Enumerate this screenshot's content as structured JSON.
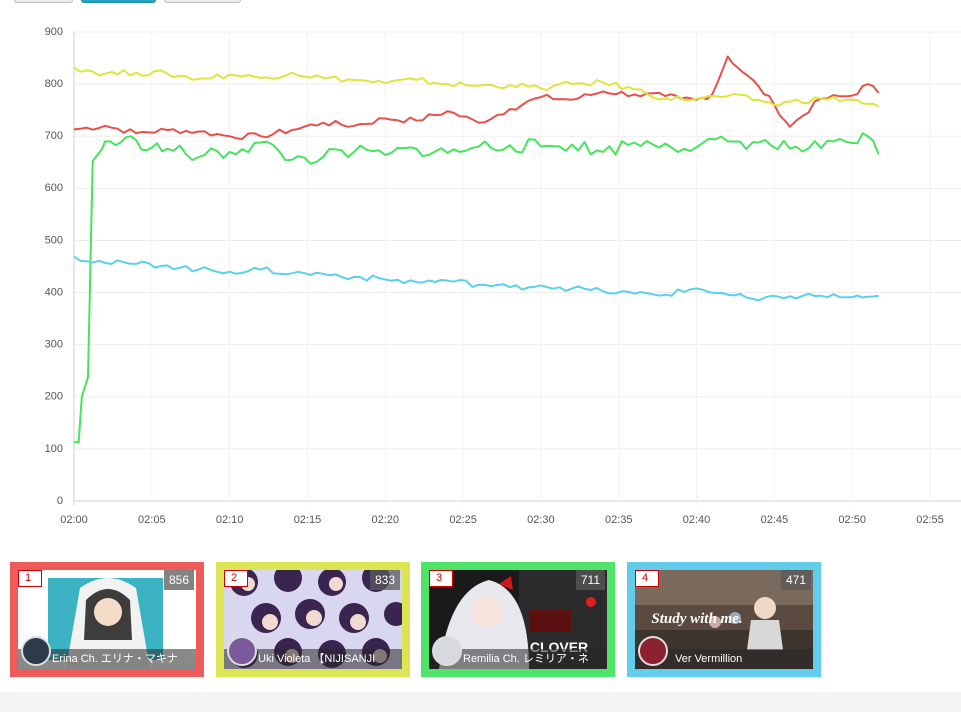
{
  "chart_data": {
    "type": "line",
    "y_ticks": [
      "900",
      "800",
      "700",
      "600",
      "500",
      "400",
      "300",
      "200",
      "100",
      "0"
    ],
    "x_ticks": [
      "02:00",
      "02:05",
      "02:10",
      "02:15",
      "02:20",
      "02:25",
      "02:30",
      "02:35",
      "02:40",
      "02:45",
      "02:50",
      "02:55"
    ],
    "ylim": [
      0,
      900
    ],
    "xlim_minutes": [
      0,
      55
    ],
    "grid": true,
    "series": [
      {
        "color": "#e8504a",
        "x": [
          0,
          2,
          4,
          6,
          8,
          10,
          12,
          14,
          16,
          18,
          20,
          22,
          24,
          26,
          28,
          30,
          32,
          34,
          36,
          38,
          39,
          40,
          41,
          42,
          43,
          44,
          45,
          46,
          48,
          50,
          51,
          51.7
        ],
        "y": [
          713,
          720,
          706,
          712,
          709,
          700,
          700,
          712,
          726,
          720,
          734,
          730,
          748,
          726,
          752,
          775,
          770,
          786,
          780,
          777,
          772,
          770,
          780,
          853,
          822,
          795,
          760,
          718,
          772,
          778,
          800,
          783
        ]
      },
      {
        "color": "#dce63c",
        "x": [
          0,
          2,
          4,
          6,
          8,
          10,
          12,
          14,
          16,
          18,
          20,
          22,
          24,
          26,
          28,
          30,
          32,
          34,
          36,
          38,
          40,
          42,
          44,
          45,
          46,
          48,
          50,
          51,
          51.7
        ],
        "y": [
          832,
          820,
          822,
          820,
          810,
          818,
          812,
          822,
          812,
          808,
          802,
          808,
          800,
          797,
          798,
          792,
          800,
          803,
          790,
          772,
          772,
          777,
          770,
          760,
          766,
          772,
          770,
          762,
          757
        ]
      },
      {
        "color": "#46e35e",
        "x": [
          0,
          0.3,
          0.5,
          0.9,
          1.2,
          1.4,
          1.6,
          1.8,
          2,
          3,
          4,
          5,
          6,
          8,
          10,
          12,
          14,
          16,
          18,
          20,
          22,
          24,
          26,
          28,
          30,
          32,
          34,
          36,
          38,
          40,
          42,
          44,
          46,
          48,
          50,
          51,
          51.7
        ],
        "y": [
          113,
          113,
          200,
          238,
          652,
          660,
          668,
          675,
          690,
          688,
          692,
          678,
          676,
          660,
          670,
          688,
          655,
          660,
          670,
          664,
          676,
          668,
          680,
          683,
          680,
          684,
          670,
          688,
          686,
          679,
          690,
          688,
          676,
          677,
          687,
          700,
          665
        ]
      },
      {
        "color": "#5bd0ea",
        "x": [
          0,
          2,
          4,
          6,
          8,
          10,
          12,
          14,
          16,
          18,
          20,
          22,
          24,
          26,
          28,
          30,
          32,
          34,
          36,
          38,
          40,
          42,
          44,
          46,
          48,
          50,
          51,
          51.7
        ],
        "y": [
          469,
          457,
          455,
          452,
          444,
          440,
          444,
          437,
          436,
          430,
          425,
          420,
          423,
          415,
          410,
          414,
          408,
          402,
          398,
          396,
          408,
          396,
          385,
          393,
          394,
          391,
          392,
          394
        ]
      }
    ]
  },
  "cards": [
    {
      "rank": "1",
      "count": "856",
      "name": "Erina Ch. エリナ・マキナ",
      "color": "#ee5b5b"
    },
    {
      "rank": "2",
      "count": "833",
      "name": "Uki Violeta 【NIJISANJI",
      "color": "#dce654"
    },
    {
      "rank": "3",
      "count": "711",
      "name": "Remilia Ch. レミリア・ネ",
      "color": "#4fe369"
    },
    {
      "rank": "4",
      "count": "471",
      "name": "Ver Vermillion",
      "color": "#62cdeb"
    }
  ],
  "thumb_text": {
    "t3": "CLOVER",
    "t4": "Study with me."
  }
}
